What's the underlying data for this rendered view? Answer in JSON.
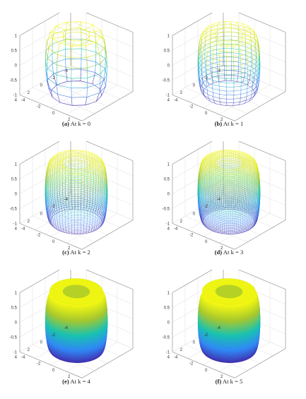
{
  "chart_data": [
    {
      "type": "surface",
      "panel_label": "(a)",
      "caption": "At k = 0",
      "k": 0,
      "mesh_density": "coarse",
      "shading": "wireframe",
      "x_ticks": [
        "-4",
        "-2",
        "0",
        "2",
        "4"
      ],
      "y_ticks": [
        "-4",
        "-2",
        "0",
        "2",
        "4"
      ],
      "z_ticks": [
        "-1",
        "-0.5",
        "0",
        "0.5",
        "1"
      ],
      "xlim": [
        -4,
        4
      ],
      "ylim": [
        -4,
        4
      ],
      "zlim": [
        -1,
        1
      ],
      "grid": true
    },
    {
      "type": "surface",
      "panel_label": "(b)",
      "caption": "At k = 1",
      "k": 1,
      "mesh_density": "medium",
      "shading": "wireframe",
      "x_ticks": [
        "-4",
        "-2",
        "0",
        "2",
        "4"
      ],
      "y_ticks": [
        "-4",
        "-2",
        "0",
        "2",
        "4"
      ],
      "z_ticks": [
        "-1",
        "-0.5",
        "0",
        "0.5",
        "1"
      ],
      "xlim": [
        -4,
        4
      ],
      "ylim": [
        -4,
        4
      ],
      "zlim": [
        -1,
        1
      ],
      "grid": true
    },
    {
      "type": "surface",
      "panel_label": "(c)",
      "caption": "At k = 2",
      "k": 2,
      "mesh_density": "fine",
      "shading": "wireframe",
      "x_ticks": [
        "-4",
        "-2",
        "0",
        "2",
        "4"
      ],
      "y_ticks": [
        "-4",
        "-2",
        "0",
        "2",
        "4"
      ],
      "z_ticks": [
        "-1",
        "-0.5",
        "0",
        "0.5",
        "1"
      ],
      "xlim": [
        -4,
        4
      ],
      "ylim": [
        -4,
        4
      ],
      "zlim": [
        -1,
        1
      ],
      "grid": true
    },
    {
      "type": "surface",
      "panel_label": "(d)",
      "caption": "At k = 3",
      "k": 3,
      "mesh_density": "very fine",
      "shading": "wireframe",
      "x_ticks": [
        "-4",
        "-2",
        "0",
        "2",
        "4"
      ],
      "y_ticks": [
        "-4",
        "-2",
        "0",
        "2",
        "4"
      ],
      "z_ticks": [
        "-1",
        "-0.5",
        "0",
        "0.5",
        "1"
      ],
      "xlim": [
        -4,
        4
      ],
      "ylim": [
        -4,
        4
      ],
      "zlim": [
        -1,
        1
      ],
      "grid": true
    },
    {
      "type": "surface",
      "panel_label": "(e)",
      "caption": "At k = 4",
      "k": 4,
      "mesh_density": "dense",
      "shading": "filled",
      "x_ticks": [
        "-4",
        "-2",
        "0",
        "2",
        "4"
      ],
      "y_ticks": [
        "-4",
        "-2",
        "0",
        "2",
        "4"
      ],
      "z_ticks": [
        "-1",
        "-0.5",
        "0",
        "0.5",
        "1"
      ],
      "xlim": [
        -4,
        4
      ],
      "ylim": [
        -4,
        4
      ],
      "zlim": [
        -1,
        1
      ],
      "grid": true
    },
    {
      "type": "surface",
      "panel_label": "(f)",
      "caption": "At k = 5",
      "k": 5,
      "mesh_density": "dense",
      "shading": "filled",
      "x_ticks": [
        "-4",
        "-2",
        "0",
        "2",
        "4"
      ],
      "y_ticks": [
        "-4",
        "-2",
        "0",
        "2",
        "4"
      ],
      "z_ticks": [
        "-1",
        "-0.5",
        "0",
        "0.5",
        "1"
      ],
      "xlim": [
        -4,
        4
      ],
      "ylim": [
        -4,
        4
      ],
      "zlim": [
        -1,
        1
      ],
      "grid": true
    }
  ],
  "colors": {
    "colormap": "parula",
    "low": "#3e26a8",
    "mid_low": "#2e87f5",
    "mid": "#16c1b0",
    "mid_high": "#a5c72c",
    "high": "#f9fb0e",
    "grid": "#e4e4e4",
    "axis": "#8a8a8a"
  }
}
